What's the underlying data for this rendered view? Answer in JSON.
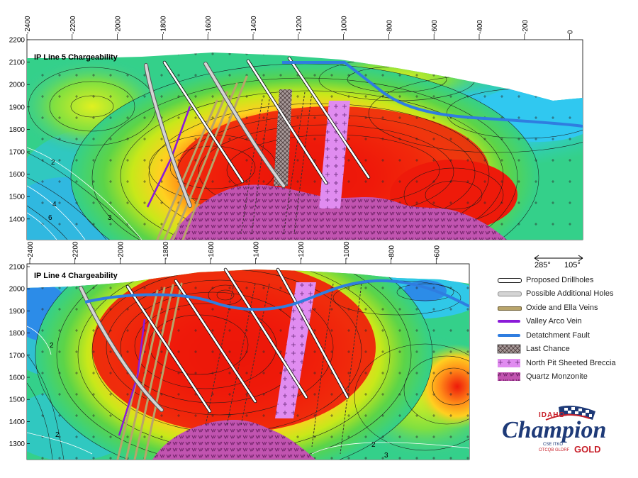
{
  "panel_top": {
    "title": "IP Line 5 Chargeability",
    "x_ticks": [
      "-2400",
      "-2200",
      "-2000",
      "-1800",
      "-1600",
      "-1400",
      "-1200",
      "-1000",
      "-800",
      "-600",
      "-400",
      "-200",
      "0"
    ],
    "y_ticks": [
      "2200",
      "2100",
      "2000",
      "1900",
      "1800",
      "1700",
      "1600",
      "1500",
      "1400"
    ],
    "contour_labels": [
      "2",
      "4",
      "6",
      "3"
    ]
  },
  "panel_bottom": {
    "title": "IP Line 4 Chargeability",
    "x_ticks": [
      "-2400",
      "-2200",
      "-2000",
      "-1800",
      "-1600",
      "-1400",
      "-1200",
      "-1000",
      "-800",
      "-600"
    ],
    "y_ticks": [
      "2100",
      "2000",
      "1900",
      "1800",
      "1700",
      "1600",
      "1500",
      "1400",
      "1300"
    ],
    "contour_labels": [
      "2",
      "2",
      "2",
      "3"
    ]
  },
  "compass": {
    "left": "285°",
    "right": "105°"
  },
  "legend": [
    {
      "label": "Proposed Drillholes",
      "icon": "white-line"
    },
    {
      "label": "Possible Additional Holes",
      "icon": "grey-line"
    },
    {
      "label": "Oxide and Ella Veins",
      "icon": "tan-line"
    },
    {
      "label": "Valley Arco Vein",
      "icon": "purple-line"
    },
    {
      "label": "Detatchment Fault",
      "icon": "blue-line"
    },
    {
      "label": "Last Chance",
      "icon": "crosshatch-box"
    },
    {
      "label": "North Pit Sheeted Breccia",
      "icon": "pink-plus-box"
    },
    {
      "label": "Quartz Monzonite",
      "icon": "magenta-v-box"
    }
  ],
  "logo": {
    "top": "IDAHO",
    "main": "Champion",
    "sub": "GOLD",
    "ticker1": "CSE ITKO",
    "ticker2": "OTCQB GLDRF"
  },
  "colors": {
    "blue_fault": "#2f7de0",
    "red_core": "#ee1a0a",
    "quartz_monzonite": "#c154b0",
    "breccia": "#e08cf0",
    "vein_tan": "#b8a46a",
    "valley_arco": "#8a1ad8",
    "logo_navy": "#1e3a78",
    "logo_red": "#c8202a"
  }
}
